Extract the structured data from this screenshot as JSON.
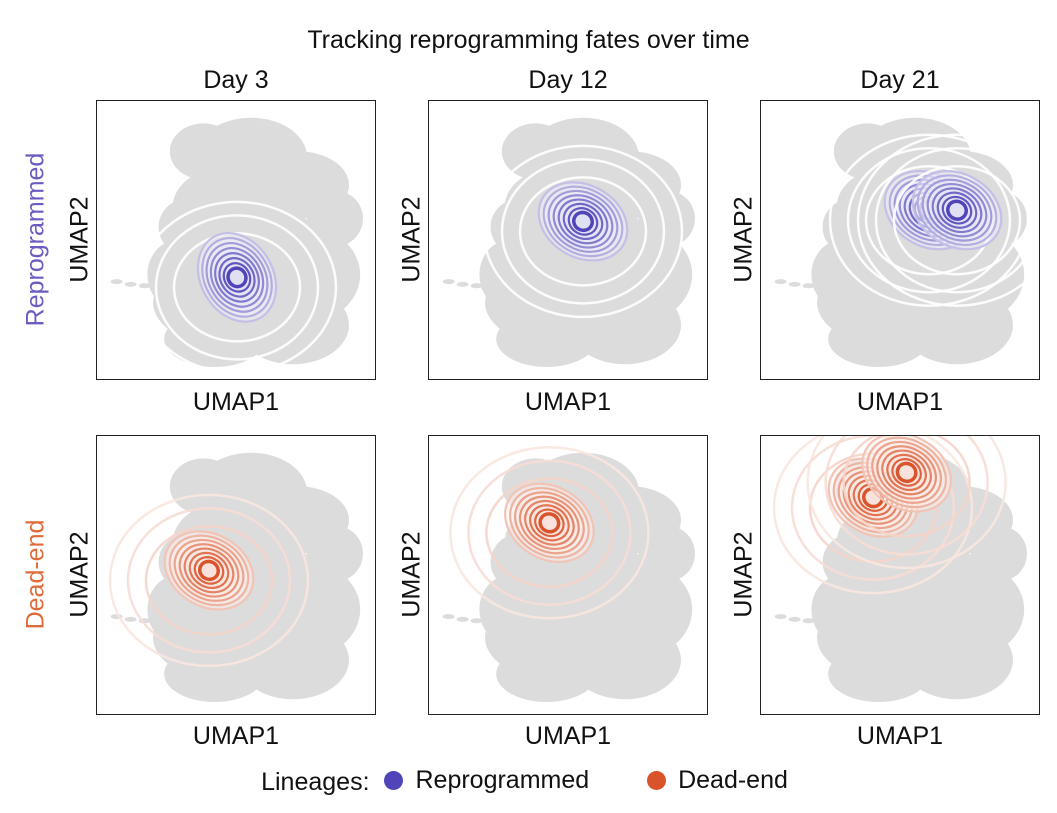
{
  "figure": {
    "title": "Tracking reprogramming fates over time",
    "legend_label": "Lineages:"
  },
  "chart_data": {
    "type": "contour",
    "title": "Tracking reprogramming fates over time",
    "columns": [
      "Day 3",
      "Day 12",
      "Day 21"
    ],
    "rows": [
      "Reprogrammed",
      "Dead-end"
    ],
    "xlabel": "UMAP1",
    "ylabel": "UMAP2",
    "ticks": "none",
    "background": "UMAP embedding of all cells (grey)",
    "legend": {
      "title": "Lineages:",
      "placement": "bottom",
      "entries": [
        {
          "name": "Reprogrammed",
          "color": "#4f45b8"
        },
        {
          "name": "Dead-end",
          "color": "#d9542b"
        }
      ]
    },
    "colors": {
      "Reprogrammed_row_label": "#6a5cc0",
      "Dead-end_row_label": "#df6a3a",
      "background_cells": "#d9d9d9"
    },
    "panels": [
      {
        "row": "Reprogrammed",
        "column": "Day 3",
        "density_peaks": [
          {
            "umap1": 0.5,
            "umap2": 0.37
          }
        ]
      },
      {
        "row": "Reprogrammed",
        "column": "Day 12",
        "density_peaks": [
          {
            "umap1": 0.55,
            "umap2": 0.57
          }
        ]
      },
      {
        "row": "Reprogrammed",
        "column": "Day 21",
        "density_peaks": [
          {
            "umap1": 0.6,
            "umap2": 0.61
          },
          {
            "umap1": 0.7,
            "umap2": 0.61
          }
        ]
      },
      {
        "row": "Dead-end",
        "column": "Day 3",
        "density_peaks": [
          {
            "umap1": 0.4,
            "umap2": 0.52
          }
        ]
      },
      {
        "row": "Dead-end",
        "column": "Day 12",
        "density_peaks": [
          {
            "umap1": 0.43,
            "umap2": 0.69
          }
        ]
      },
      {
        "row": "Dead-end",
        "column": "Day 21",
        "density_peaks": [
          {
            "umap1": 0.4,
            "umap2": 0.78
          },
          {
            "umap1": 0.52,
            "umap2": 0.87
          }
        ]
      }
    ]
  }
}
